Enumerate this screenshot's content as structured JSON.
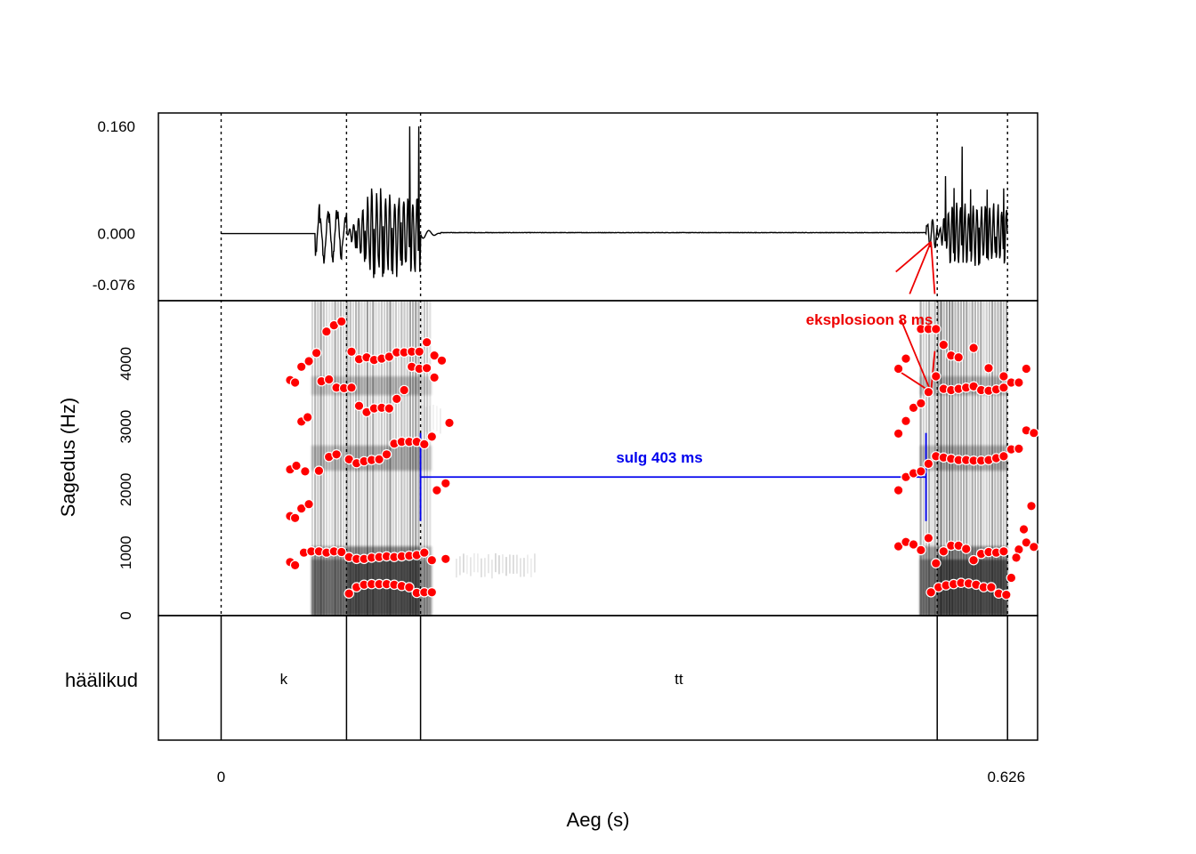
{
  "chart_data": {
    "type": "spectrogram-with-waveform",
    "xlabel": "Aeg (s)",
    "ylabel": "Sagedus (Hz)",
    "xlim": [
      -0.05,
      0.651
    ],
    "x_ticks": [
      {
        "value": 0,
        "label": "0"
      },
      {
        "value": 0.626,
        "label": "0.626"
      }
    ],
    "waveform": {
      "ylim": [
        -0.1,
        0.18
      ],
      "y_ticks": [
        {
          "value": 0.16,
          "label": "0.160"
        },
        {
          "value": 0.0,
          "label": "0.000"
        },
        {
          "value": -0.076,
          "label": "-0.076"
        }
      ]
    },
    "spectrogram": {
      "ylim": [
        0,
        5000
      ],
      "y_ticks": [
        {
          "value": 0,
          "label": "0"
        },
        {
          "value": 1000,
          "label": "1000"
        },
        {
          "value": 2000,
          "label": "2000"
        },
        {
          "value": 3000,
          "label": "3000"
        },
        {
          "value": 4000,
          "label": "4000"
        }
      ]
    },
    "boundaries": [
      0.0,
      0.1,
      0.159,
      0.571,
      0.627
    ],
    "tier_label": "häälikud",
    "segments": [
      {
        "label": "k",
        "start": 0.0,
        "end": 0.1
      },
      {
        "label": "",
        "start": 0.1,
        "end": 0.159
      },
      {
        "label": "tt",
        "start": 0.159,
        "end": 0.571
      },
      {
        "label": "",
        "start": 0.571,
        "end": 0.627
      }
    ],
    "annotations": {
      "closure": {
        "label": "sulg 403 ms",
        "start": 0.159,
        "end": 0.562,
        "freq": 2200,
        "color": "#0000ee"
      },
      "burst": {
        "label": "eksplosioon 8 ms",
        "time": 0.566,
        "freq": 3550,
        "color": "#ee0000"
      }
    },
    "formant_color": "#ff0000",
    "formant_tracks": [
      [
        [
          0.055,
          850
        ],
        [
          0.059,
          800
        ],
        [
          0.066,
          1000
        ],
        [
          0.072,
          1020
        ],
        [
          0.078,
          1020
        ],
        [
          0.084,
          1000
        ],
        [
          0.09,
          1020
        ],
        [
          0.096,
          1010
        ],
        [
          0.102,
          350
        ],
        [
          0.108,
          450
        ],
        [
          0.114,
          490
        ],
        [
          0.12,
          500
        ],
        [
          0.126,
          500
        ],
        [
          0.132,
          500
        ],
        [
          0.138,
          490
        ],
        [
          0.144,
          470
        ],
        [
          0.15,
          450
        ],
        [
          0.156,
          360
        ],
        [
          0.162,
          370
        ],
        [
          0.168,
          370
        ]
      ],
      [
        [
          0.055,
          1580
        ],
        [
          0.059,
          1550
        ],
        [
          0.064,
          1700
        ],
        [
          0.07,
          1770
        ],
        [
          0.102,
          930
        ],
        [
          0.108,
          900
        ],
        [
          0.114,
          900
        ],
        [
          0.12,
          920
        ],
        [
          0.126,
          930
        ],
        [
          0.132,
          940
        ],
        [
          0.138,
          930
        ],
        [
          0.144,
          940
        ],
        [
          0.15,
          950
        ],
        [
          0.156,
          960
        ],
        [
          0.162,
          1000
        ],
        [
          0.168,
          880
        ],
        [
          0.179,
          900
        ]
      ],
      [
        [
          0.055,
          2320
        ],
        [
          0.06,
          2380
        ],
        [
          0.067,
          2290
        ],
        [
          0.078,
          2300
        ],
        [
          0.086,
          2520
        ],
        [
          0.092,
          2560
        ],
        [
          0.102,
          2480
        ],
        [
          0.108,
          2420
        ],
        [
          0.114,
          2450
        ],
        [
          0.12,
          2470
        ],
        [
          0.126,
          2480
        ],
        [
          0.132,
          2560
        ],
        [
          0.138,
          2730
        ],
        [
          0.144,
          2760
        ],
        [
          0.15,
          2760
        ],
        [
          0.156,
          2760
        ],
        [
          0.162,
          2720
        ],
        [
          0.168,
          2840
        ],
        [
          0.172,
          1990
        ],
        [
          0.179,
          2100
        ]
      ],
      [
        [
          0.055,
          3740
        ],
        [
          0.059,
          3700
        ],
        [
          0.064,
          3080
        ],
        [
          0.069,
          3150
        ],
        [
          0.08,
          3720
        ],
        [
          0.086,
          3750
        ],
        [
          0.092,
          3620
        ],
        [
          0.098,
          3610
        ],
        [
          0.104,
          3620
        ],
        [
          0.11,
          3330
        ],
        [
          0.116,
          3230
        ],
        [
          0.122,
          3290
        ],
        [
          0.128,
          3300
        ],
        [
          0.134,
          3290
        ],
        [
          0.14,
          3440
        ],
        [
          0.146,
          3580
        ],
        [
          0.152,
          3950
        ],
        [
          0.158,
          3920
        ],
        [
          0.164,
          3930
        ],
        [
          0.17,
          3780
        ]
      ],
      [
        [
          0.064,
          3950
        ],
        [
          0.07,
          4040
        ],
        [
          0.076,
          4170
        ],
        [
          0.084,
          4510
        ],
        [
          0.09,
          4610
        ],
        [
          0.096,
          4670
        ],
        [
          0.104,
          4190
        ],
        [
          0.11,
          4070
        ],
        [
          0.116,
          4100
        ],
        [
          0.122,
          4060
        ],
        [
          0.128,
          4080
        ],
        [
          0.134,
          4110
        ],
        [
          0.14,
          4180
        ],
        [
          0.146,
          4180
        ],
        [
          0.152,
          4190
        ],
        [
          0.158,
          4190
        ],
        [
          0.164,
          4340
        ],
        [
          0.17,
          4130
        ],
        [
          0.176,
          4050
        ],
        [
          0.182,
          3060
        ]
      ],
      [
        [
          0.54,
          1100
        ],
        [
          0.546,
          1170
        ],
        [
          0.552,
          1130
        ],
        [
          0.558,
          1040
        ],
        [
          0.564,
          1230
        ],
        [
          0.57,
          830
        ],
        [
          0.576,
          1020
        ],
        [
          0.582,
          1110
        ],
        [
          0.588,
          1110
        ],
        [
          0.594,
          1060
        ],
        [
          0.6,
          880
        ],
        [
          0.606,
          980
        ],
        [
          0.612,
          1010
        ],
        [
          0.618,
          1000
        ],
        [
          0.624,
          1020
        ],
        [
          0.63,
          600
        ],
        [
          0.636,
          1050
        ],
        [
          0.642,
          1160
        ],
        [
          0.648,
          1090
        ],
        [
          0.654,
          1090
        ]
      ],
      [
        [
          0.566,
          370
        ],
        [
          0.572,
          450
        ],
        [
          0.578,
          480
        ],
        [
          0.584,
          500
        ],
        [
          0.59,
          520
        ],
        [
          0.596,
          510
        ],
        [
          0.602,
          490
        ],
        [
          0.608,
          450
        ],
        [
          0.614,
          450
        ],
        [
          0.62,
          350
        ],
        [
          0.626,
          330
        ],
        [
          0.634,
          920
        ],
        [
          0.64,
          1370
        ],
        [
          0.646,
          1740
        ]
      ],
      [
        [
          0.54,
          1990
        ],
        [
          0.546,
          2200
        ],
        [
          0.552,
          2260
        ],
        [
          0.558,
          2290
        ],
        [
          0.564,
          2410
        ],
        [
          0.57,
          2530
        ],
        [
          0.576,
          2510
        ],
        [
          0.582,
          2490
        ],
        [
          0.588,
          2470
        ],
        [
          0.594,
          2470
        ],
        [
          0.6,
          2460
        ],
        [
          0.606,
          2460
        ],
        [
          0.612,
          2470
        ],
        [
          0.618,
          2500
        ],
        [
          0.624,
          2530
        ],
        [
          0.63,
          2640
        ],
        [
          0.636,
          2650
        ],
        [
          0.642,
          2940
        ],
        [
          0.648,
          2900
        ]
      ],
      [
        [
          0.54,
          2890
        ],
        [
          0.546,
          3090
        ],
        [
          0.552,
          3300
        ],
        [
          0.558,
          3370
        ],
        [
          0.564,
          3550
        ],
        [
          0.57,
          3800
        ],
        [
          0.576,
          3600
        ],
        [
          0.582,
          3580
        ],
        [
          0.588,
          3600
        ],
        [
          0.594,
          3620
        ],
        [
          0.6,
          3640
        ],
        [
          0.606,
          3580
        ],
        [
          0.612,
          3570
        ],
        [
          0.618,
          3590
        ],
        [
          0.624,
          3620
        ],
        [
          0.63,
          3700
        ],
        [
          0.636,
          3700
        ],
        [
          0.642,
          3920
        ]
      ],
      [
        [
          0.54,
          3920
        ],
        [
          0.546,
          4080
        ],
        [
          0.558,
          4550
        ],
        [
          0.564,
          4550
        ],
        [
          0.57,
          4550
        ],
        [
          0.576,
          4300
        ],
        [
          0.582,
          4130
        ],
        [
          0.588,
          4100
        ],
        [
          0.6,
          4250
        ],
        [
          0.612,
          3930
        ],
        [
          0.624,
          3800
        ],
        [
          0.654,
          4570
        ]
      ]
    ]
  }
}
